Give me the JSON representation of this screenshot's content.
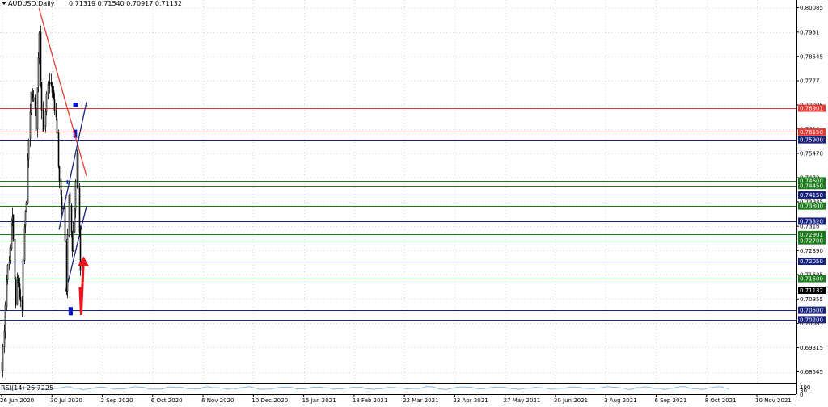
{
  "chart_data": {
    "type": "candlestick",
    "symbol": "AUDUSD,Daily",
    "ohlc_label": "0.71319 0.71540 0.70917 0.71132",
    "indicator_label": "RSI(14) 26.7225",
    "rsi_axis_labels": [
      "100",
      "30",
      "0"
    ],
    "ylim": [
      0.682,
      0.8033
    ],
    "grid": true,
    "price_ticks": [
      0.80085,
      0.7931,
      0.78545,
      0.7777,
      0.77005,
      0.7624,
      0.7547,
      0.747,
      0.73935,
      0.7316,
      0.7239,
      0.71625,
      0.70855,
      0.70085,
      0.69315,
      0.68545
    ],
    "price_tick_labels": [
      "0.80085",
      "0.7931",
      "0.78545",
      "0.7777",
      "0.77005",
      "0.7624",
      "0.75470",
      "0.7470",
      "0.73935",
      "0.7316",
      "0.72390",
      "0.71625",
      "0.70855",
      "0.70085",
      "0.69315",
      "0.68545"
    ],
    "date_labels": [
      "26 Jun 2020",
      "30 Jul 2020",
      "2 Sep 2020",
      "6 Oct 2020",
      "6 Nov 2020",
      "10 Dec 2020",
      "15 Jan 2021",
      "18 Feb 2021",
      "22 Mar 2021",
      "23 Apr 2021",
      "27 May 2021",
      "30 Jun 2021",
      "3 Aug 2021",
      "6 Sep 2021",
      "8 Oct 2021",
      "10 Nov 2021"
    ],
    "current_price": "0.71132",
    "horizontal_levels": [
      {
        "value": 0.769,
        "label": "0.76901",
        "color": "#e53935"
      },
      {
        "value": 0.7615,
        "label": "0.76150",
        "color": "#e53935"
      },
      {
        "value": 0.759,
        "label": "0.75900",
        "color": "#1a237e"
      },
      {
        "value": 0.746,
        "label": "0.74600",
        "color": "#1b7a1b"
      },
      {
        "value": 0.7445,
        "label": "0.74450",
        "color": "#1b7a1b"
      },
      {
        "value": 0.7415,
        "label": "0.74150",
        "color": "#1a237e"
      },
      {
        "value": 0.738,
        "label": "0.73800",
        "color": "#1b7a1b"
      },
      {
        "value": 0.7332,
        "label": "0.73320",
        "color": "#1a237e"
      },
      {
        "value": 0.729,
        "label": "0.72901",
        "color": "#1b7a1b"
      },
      {
        "value": 0.727,
        "label": "0.72700",
        "color": "#1b7a1b"
      },
      {
        "value": 0.7205,
        "label": "0.72050",
        "color": "#1a237e"
      },
      {
        "value": 0.715,
        "label": "0.71500",
        "color": "#1b7a1b"
      },
      {
        "value": 0.705,
        "label": "0.70500",
        "color": "#1a237e"
      },
      {
        "value": 0.702,
        "label": "0.70200",
        "color": "#1a237e"
      }
    ],
    "trendlines": [
      {
        "name": "downtrend",
        "color": "#e53935",
        "from": {
          "date": "2021-02-24",
          "price": 0.8007
        },
        "to": {
          "date": "2021-12-31",
          "price": 0.7475
        }
      },
      {
        "name": "channel-upper",
        "color": "#1a237e",
        "from": {
          "date": "2021-07-05",
          "price": 0.7305
        },
        "to": {
          "date": "2021-12-31",
          "price": 0.771
        }
      },
      {
        "name": "channel-lower",
        "color": "#1a237e",
        "from": {
          "date": "2021-08-18",
          "price": 0.711
        },
        "to": {
          "date": "2021-12-31",
          "price": 0.738
        }
      }
    ],
    "zones": [
      {
        "from_date": "2021-10-05",
        "to_date": "2021-11-08",
        "high": 0.7708,
        "low": 0.7694,
        "color": "#0a14c8"
      },
      {
        "from_date": "2021-10-06",
        "to_date": "2021-10-30",
        "high": 0.7622,
        "low": 0.7596,
        "color": "#0a14c8"
      },
      {
        "from_date": "2021-08-24",
        "to_date": "2021-09-02",
        "high": 0.7462,
        "low": 0.745,
        "color": "#0a14c8"
      },
      {
        "from_date": "2021-09-05",
        "to_date": "2021-10-02",
        "high": 0.706,
        "low": 0.7034,
        "color": "#0a14c8"
      }
    ],
    "projection": {
      "color": "#e8141e",
      "points": [
        {
          "date": "2021-11-18",
          "price": 0.7123
        },
        {
          "date": "2021-11-26",
          "price": 0.7035
        },
        {
          "date": "2021-12-11",
          "price": 0.7205
        }
      ]
    },
    "price_path": [
      {
        "date": "2020-06-26",
        "close": 0.688
      },
      {
        "date": "2020-07-10",
        "close": 0.696
      },
      {
        "date": "2020-07-30",
        "close": 0.717
      },
      {
        "date": "2020-08-15",
        "close": 0.719
      },
      {
        "date": "2020-08-31",
        "close": 0.738
      },
      {
        "date": "2020-09-10",
        "close": 0.727
      },
      {
        "date": "2020-09-25",
        "close": 0.704
      },
      {
        "date": "2020-10-05",
        "close": 0.717
      },
      {
        "date": "2020-10-20",
        "close": 0.709
      },
      {
        "date": "2020-11-02",
        "close": 0.703
      },
      {
        "date": "2020-11-16",
        "close": 0.73
      },
      {
        "date": "2020-12-01",
        "close": 0.738
      },
      {
        "date": "2020-12-15",
        "close": 0.756
      },
      {
        "date": "2021-01-05",
        "close": 0.775
      },
      {
        "date": "2021-01-20",
        "close": 0.771
      },
      {
        "date": "2021-02-02",
        "close": 0.763
      },
      {
        "date": "2021-02-24",
        "close": 0.796
      },
      {
        "date": "2021-03-10",
        "close": 0.77
      },
      {
        "date": "2021-03-25",
        "close": 0.76
      },
      {
        "date": "2021-04-15",
        "close": 0.774
      },
      {
        "date": "2021-05-05",
        "close": 0.778
      },
      {
        "date": "2021-05-25",
        "close": 0.772
      },
      {
        "date": "2021-06-15",
        "close": 0.765
      },
      {
        "date": "2021-07-01",
        "close": 0.748
      },
      {
        "date": "2021-07-20",
        "close": 0.735
      },
      {
        "date": "2021-08-05",
        "close": 0.739
      },
      {
        "date": "2021-08-20",
        "close": 0.712
      },
      {
        "date": "2021-09-05",
        "close": 0.744
      },
      {
        "date": "2021-09-25",
        "close": 0.724
      },
      {
        "date": "2021-10-05",
        "close": 0.73
      },
      {
        "date": "2021-10-27",
        "close": 0.754
      },
      {
        "date": "2021-11-10",
        "close": 0.733
      },
      {
        "date": "2021-11-22",
        "close": 0.713
      }
    ]
  }
}
